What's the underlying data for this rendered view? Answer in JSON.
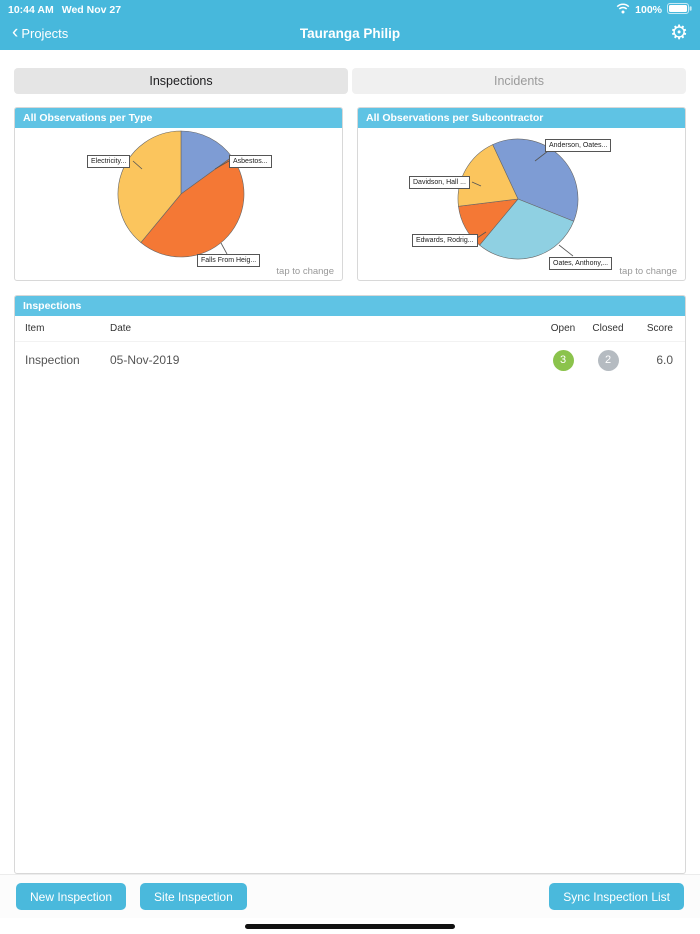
{
  "status_bar": {
    "time": "10:44 AM",
    "date": "Wed Nov 27",
    "battery_percent": "100%"
  },
  "nav": {
    "back_label": "Projects",
    "title": "Tauranga Philip"
  },
  "tabs": {
    "inspections": "Inspections",
    "incidents": "Incidents"
  },
  "chart_data": [
    {
      "type": "pie",
      "title": "All Observations per Type",
      "labels": [
        "Asbestos...",
        "Falls From Heig...",
        "Electricity..."
      ],
      "values": [
        15,
        46,
        39
      ],
      "colors": [
        "#7e9cd4",
        "#f47835",
        "#fbc55d"
      ],
      "start_angle": -90,
      "legend_position": "callouts",
      "note": "tap to change"
    },
    {
      "type": "pie",
      "title": "All Observations per Subcontractor",
      "labels": [
        "Anderson, Oates...",
        "Oates, Anthony,...",
        "Edwards, Rodrig...",
        "Davidson, Hall ..."
      ],
      "values": [
        38,
        30,
        12,
        20
      ],
      "colors": [
        "#7e9cd4",
        "#8fd0e2",
        "#f47835",
        "#fbc55d"
      ],
      "start_angle": -115,
      "legend_position": "callouts",
      "note": "tap to change"
    }
  ],
  "table": {
    "title": "Inspections",
    "columns": [
      "Item",
      "Date",
      "Open",
      "Closed",
      "Score"
    ],
    "rows": [
      {
        "item": "Inspection",
        "date": "05-Nov-2019",
        "open": "3",
        "closed": "2",
        "score": "6.0"
      }
    ]
  },
  "toolbar": {
    "new_inspection": "New Inspection",
    "site_inspection": "Site Inspection",
    "sync": "Sync Inspection List"
  },
  "colors": {
    "header_teal": "#47b8dc",
    "card_header_blue": "#5fc3e4",
    "button_teal": "#4ab9dc",
    "open_badge": "#8bc34c",
    "closed_badge": "#b5bbc1"
  }
}
